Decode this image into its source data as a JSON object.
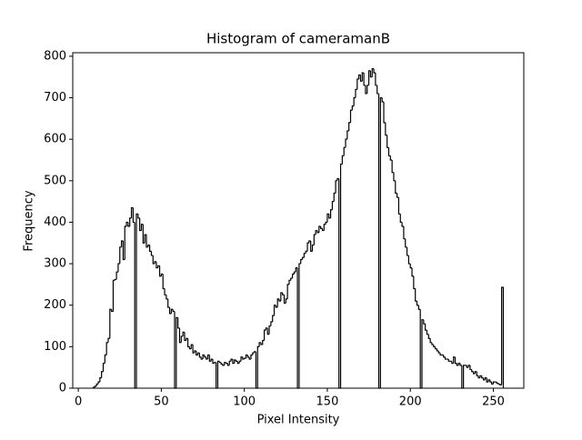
{
  "chart_data": {
    "type": "histogram",
    "title": "Histogram of cameramanB",
    "x_label": "Pixel Intensity",
    "y_label": "Frequency",
    "color": "#000000",
    "bins": [
      9,
      10,
      11,
      12,
      13,
      14,
      15,
      16,
      17,
      18,
      19,
      20,
      21,
      22,
      23,
      24,
      25,
      26,
      27,
      28,
      29,
      30,
      31,
      32,
      33,
      34,
      35,
      36,
      37,
      38,
      39,
      40,
      41,
      42,
      43,
      44,
      45,
      46,
      47,
      48,
      49,
      50,
      51,
      52,
      53,
      54,
      55,
      56,
      57,
      58,
      59,
      60,
      61,
      62,
      63,
      64,
      65,
      66,
      67,
      68,
      69,
      70,
      71,
      72,
      73,
      74,
      75,
      76,
      77,
      78,
      79,
      80,
      81,
      82,
      83,
      84,
      85,
      86,
      87,
      88,
      89,
      90,
      91,
      92,
      93,
      94,
      95,
      96,
      97,
      98,
      99,
      100,
      101,
      102,
      103,
      104,
      105,
      106,
      107,
      108,
      109,
      110,
      111,
      112,
      113,
      114,
      115,
      116,
      117,
      118,
      119,
      120,
      121,
      122,
      123,
      124,
      125,
      126,
      127,
      128,
      129,
      130,
      131,
      132,
      133,
      134,
      135,
      136,
      137,
      138,
      139,
      140,
      141,
      142,
      143,
      144,
      145,
      146,
      147,
      148,
      149,
      150,
      151,
      152,
      153,
      154,
      155,
      156,
      157,
      158,
      159,
      160,
      161,
      162,
      163,
      164,
      165,
      166,
      167,
      168,
      169,
      170,
      171,
      172,
      173,
      174,
      175,
      176,
      177,
      178,
      179,
      180,
      181,
      182,
      183,
      184,
      185,
      186,
      187,
      188,
      189,
      190,
      191,
      192,
      193,
      194,
      195,
      196,
      197,
      198,
      199,
      200,
      201,
      202,
      203,
      204,
      205,
      206,
      207,
      208,
      209,
      210,
      211,
      212,
      213,
      214,
      215,
      216,
      217,
      218,
      219,
      220,
      221,
      222,
      223,
      224,
      225,
      226,
      227,
      228,
      229,
      230,
      231,
      232,
      233,
      234,
      235,
      236,
      237,
      238,
      239,
      240,
      241,
      242,
      243,
      244,
      245,
      246,
      247,
      248,
      249,
      250,
      251,
      252,
      253,
      254,
      255,
      256
    ],
    "values": [
      2,
      5,
      10,
      15,
      25,
      40,
      60,
      80,
      110,
      120,
      190,
      185,
      260,
      262,
      280,
      300,
      340,
      355,
      310,
      390,
      400,
      390,
      410,
      435,
      400,
      0,
      420,
      410,
      380,
      395,
      350,
      370,
      340,
      345,
      330,
      320,
      300,
      305,
      290,
      295,
      270,
      275,
      240,
      225,
      215,
      195,
      180,
      190,
      185,
      0,
      170,
      145,
      110,
      125,
      135,
      115,
      120,
      100,
      95,
      105,
      85,
      90,
      80,
      85,
      75,
      70,
      80,
      75,
      70,
      80,
      65,
      70,
      60,
      62,
      0,
      65,
      62,
      58,
      55,
      62,
      60,
      55,
      65,
      70,
      60,
      68,
      65,
      60,
      65,
      75,
      70,
      72,
      80,
      75,
      70,
      80,
      85,
      88,
      0,
      100,
      110,
      105,
      115,
      140,
      145,
      130,
      150,
      160,
      175,
      200,
      195,
      215,
      210,
      230,
      225,
      205,
      215,
      250,
      260,
      265,
      275,
      280,
      290,
      0,
      300,
      310,
      315,
      325,
      330,
      350,
      355,
      330,
      345,
      370,
      380,
      375,
      390,
      385,
      380,
      395,
      400,
      420,
      410,
      430,
      450,
      470,
      500,
      505,
      0,
      540,
      560,
      580,
      600,
      620,
      640,
      670,
      680,
      700,
      720,
      745,
      755,
      740,
      760,
      730,
      710,
      730,
      765,
      750,
      770,
      760,
      730,
      710,
      0,
      700,
      690,
      640,
      610,
      580,
      560,
      550,
      520,
      500,
      470,
      460,
      420,
      400,
      390,
      360,
      340,
      320,
      300,
      290,
      270,
      240,
      210,
      200,
      190,
      0,
      165,
      155,
      140,
      130,
      120,
      110,
      105,
      100,
      95,
      90,
      85,
      80,
      80,
      75,
      70,
      70,
      65,
      65,
      60,
      75,
      60,
      55,
      60,
      55,
      0,
      55,
      55,
      50,
      55,
      45,
      40,
      35,
      40,
      30,
      25,
      30,
      25,
      20,
      25,
      15,
      20,
      15,
      10,
      15,
      15,
      12,
      10,
      8,
      243
    ],
    "xlim": [
      -3.35,
      268.35
    ],
    "ylim": [
      0,
      808.5
    ],
    "xticks": [
      0,
      50,
      100,
      150,
      200,
      250
    ],
    "yticks": [
      0,
      100,
      200,
      300,
      400,
      500,
      600,
      700,
      800
    ]
  }
}
